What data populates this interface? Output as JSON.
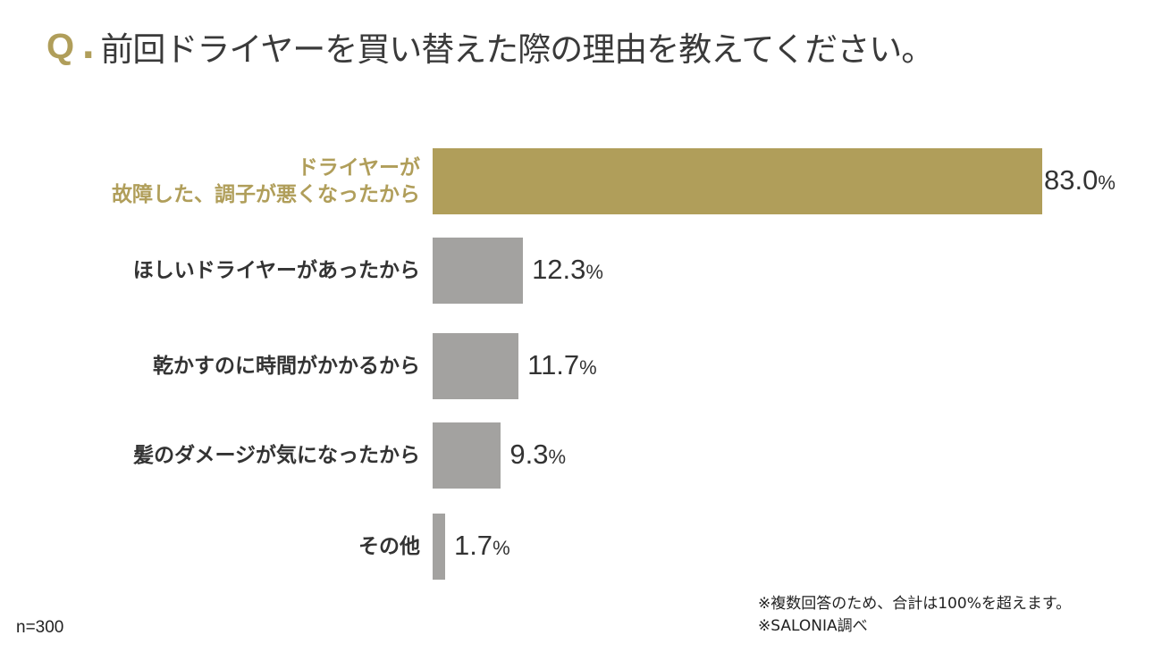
{
  "title": {
    "prefix": "Q",
    "dot": ".",
    "text": "前回ドライヤーを買い替えた際の理由を教えてください。"
  },
  "chart_data": {
    "type": "bar",
    "orientation": "horizontal",
    "title": "前回ドライヤーを買い替えた際の理由を教えてください。",
    "unit": "%",
    "categories": [
      "ドライヤーが\n故障した、調子が悪くなったから",
      "ほしいドライヤーがあったから",
      "乾かすのに時間がかかるから",
      "髪のダメージが気になったから",
      "その他"
    ],
    "values": [
      83.0,
      12.3,
      11.7,
      9.3,
      1.7
    ],
    "labels": [
      "83.0",
      "12.3",
      "11.7",
      "9.3",
      "1.7"
    ],
    "highlight_index": 0,
    "colors": {
      "highlight": "#b09e5a",
      "default": "#a3a2a0"
    },
    "xlim": [
      0,
      100
    ],
    "grid": false
  },
  "sample": "n=300",
  "notes": [
    "※複数回答のため、合計は100%を超えます。",
    "※SALONIA調べ"
  ]
}
